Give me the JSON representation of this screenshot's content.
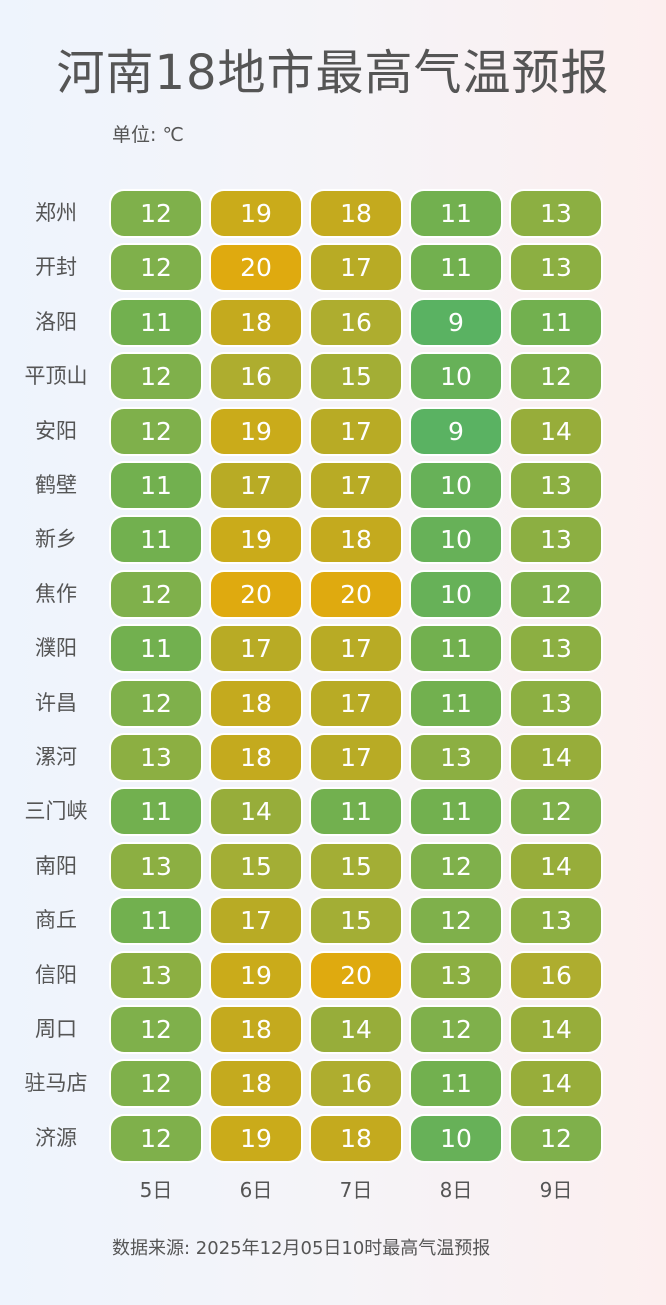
{
  "header": {
    "title": "河南18地市最高气温预报",
    "unit": "单位: ℃"
  },
  "footer": {
    "source": "数据来源: 2025年12月05日10时最高气温预报"
  },
  "color_scale": {
    "9": "#5ab262",
    "10": "#67b158",
    "11": "#72b04f",
    "12": "#7fb04b",
    "13": "#8caf42",
    "14": "#97ad3a",
    "15": "#a3ae35",
    "16": "#aead2f",
    "17": "#b8ab25",
    "18": "#c4aa1e",
    "19": "#caab1a",
    "20": "#dfaa0f"
  },
  "chart_data": {
    "type": "heatmap",
    "title": "河南18地市最高气温预报",
    "unit": "℃",
    "xlabel": "",
    "ylabel": "",
    "columns": [
      "5日",
      "6日",
      "7日",
      "8日",
      "9日"
    ],
    "rows": [
      "郑州",
      "开封",
      "洛阳",
      "平顶山",
      "安阳",
      "鹤壁",
      "新乡",
      "焦作",
      "濮阳",
      "许昌",
      "漯河",
      "三门峡",
      "南阳",
      "商丘",
      "信阳",
      "周口",
      "驻马店",
      "济源"
    ],
    "values": [
      [
        12,
        19,
        18,
        11,
        13
      ],
      [
        12,
        20,
        17,
        11,
        13
      ],
      [
        11,
        18,
        16,
        9,
        11
      ],
      [
        12,
        16,
        15,
        10,
        12
      ],
      [
        12,
        19,
        17,
        9,
        14
      ],
      [
        11,
        17,
        17,
        10,
        13
      ],
      [
        11,
        19,
        18,
        10,
        13
      ],
      [
        12,
        20,
        20,
        10,
        12
      ],
      [
        11,
        17,
        17,
        11,
        13
      ],
      [
        12,
        18,
        17,
        11,
        13
      ],
      [
        13,
        18,
        17,
        13,
        14
      ],
      [
        11,
        14,
        11,
        11,
        12
      ],
      [
        13,
        15,
        15,
        12,
        14
      ],
      [
        11,
        17,
        15,
        12,
        13
      ],
      [
        13,
        19,
        20,
        13,
        16
      ],
      [
        12,
        18,
        14,
        12,
        14
      ],
      [
        12,
        18,
        16,
        11,
        14
      ],
      [
        12,
        19,
        18,
        10,
        12
      ]
    ],
    "color_range": {
      "min": 9,
      "min_color": "#5ab262",
      "max": 20,
      "max_color": "#dfaa0f"
    },
    "source": "2025年12月05日10时最高气温预报"
  }
}
